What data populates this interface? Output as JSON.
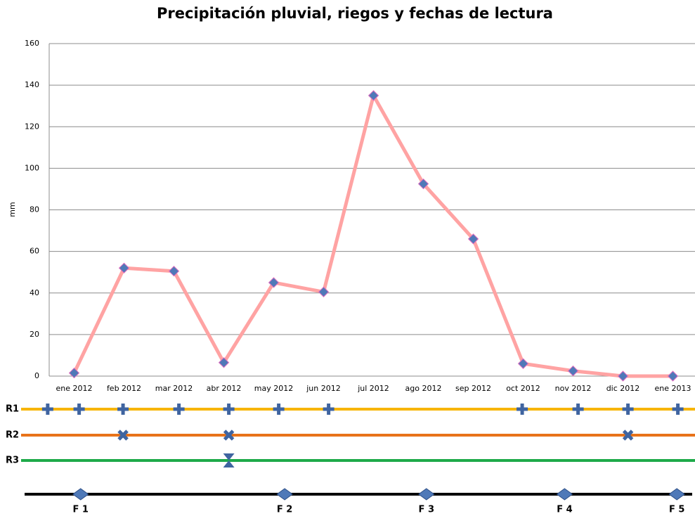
{
  "chart_data": {
    "type": "line",
    "title": "Precipitación pluvial, riegos y fechas de lectura",
    "y_label": "mm",
    "categories": [
      "ene 2012",
      "feb 2012",
      "mar 2012",
      "abr 2012",
      "may 2012",
      "jun 2012",
      "jul 2012",
      "ago 2012",
      "sep 2012",
      "oct 2012",
      "nov 2012",
      "dic 2012",
      "ene 2013"
    ],
    "series": [
      {
        "name": "mm",
        "color": "#ffa3a3",
        "marker_color": "#4f79b8",
        "values": [
          1.5,
          52,
          50.5,
          6.5,
          45,
          40.5,
          135,
          92.5,
          66,
          6,
          2.5,
          0,
          0
        ]
      }
    ],
    "ylim": [
      0,
      160
    ],
    "yticks": [
      0,
      20,
      40,
      60,
      80,
      100,
      120,
      140,
      160
    ],
    "grid": true,
    "rows": [
      {
        "name": "R1",
        "color": "#f7b500",
        "marker": "plus",
        "positions": [
          -0.53,
          0.1,
          0.98,
          2.1,
          3.1,
          4.1,
          5.1,
          8.98,
          10.1,
          11.1,
          12.1
        ]
      },
      {
        "name": "R2",
        "color": "#e8731a",
        "marker": "cross",
        "positions": [
          0.98,
          3.1,
          11.1
        ]
      },
      {
        "name": "R3",
        "color": "#1eaa4a",
        "marker": "hourglass",
        "positions": [
          3.1
        ]
      }
    ],
    "readings": {
      "color": "#000000",
      "labels": [
        "F 1",
        "F 2",
        "F 3",
        "F 4",
        "F 5"
      ],
      "positions": [
        0.13,
        4.22,
        7.06,
        9.83,
        12.08
      ]
    }
  }
}
